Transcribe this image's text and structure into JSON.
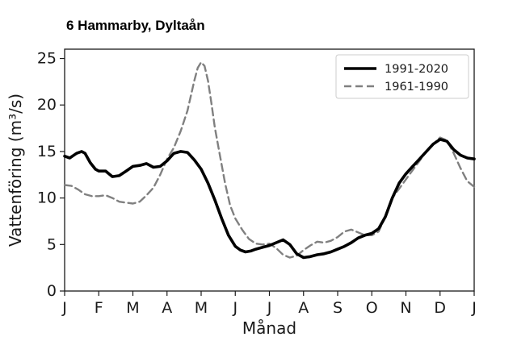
{
  "title": "6 Hammarby, Dyltaån",
  "chart_data": {
    "type": "line",
    "xlabel": "Månad",
    "ylabel": "Vattenföring (m³/s)",
    "x_tick_labels": [
      "J",
      "F",
      "M",
      "A",
      "M",
      "J",
      "J",
      "A",
      "S",
      "O",
      "N",
      "D",
      "J"
    ],
    "y_ticks": [
      0,
      5,
      10,
      15,
      20,
      25
    ],
    "xlim": [
      0,
      12
    ],
    "ylim": [
      0,
      26
    ],
    "grid": false,
    "legend_position": "top-right",
    "series": [
      {
        "name": "1991-2020",
        "style": "solid",
        "color": "#000000",
        "x": [
          0,
          0.15,
          0.35,
          0.5,
          0.6,
          0.75,
          0.9,
          1.0,
          1.2,
          1.4,
          1.6,
          1.8,
          2.0,
          2.2,
          2.4,
          2.6,
          2.8,
          3.0,
          3.2,
          3.4,
          3.6,
          3.8,
          4.0,
          4.2,
          4.4,
          4.6,
          4.8,
          5.0,
          5.15,
          5.3,
          5.45,
          5.6,
          5.8,
          6.0,
          6.2,
          6.4,
          6.6,
          6.8,
          7.0,
          7.2,
          7.4,
          7.6,
          7.8,
          8.0,
          8.2,
          8.4,
          8.6,
          8.8,
          9.0,
          9.2,
          9.4,
          9.6,
          9.8,
          10.0,
          10.2,
          10.4,
          10.6,
          10.8,
          11.0,
          11.2,
          11.4,
          11.6,
          11.8,
          12.0
        ],
        "y": [
          14.5,
          14.3,
          14.8,
          15.0,
          14.8,
          13.8,
          13.1,
          12.9,
          12.9,
          12.3,
          12.4,
          12.9,
          13.4,
          13.5,
          13.7,
          13.3,
          13.4,
          14.0,
          14.8,
          15.0,
          14.9,
          14.1,
          13.1,
          11.6,
          9.8,
          7.8,
          6.0,
          4.8,
          4.4,
          4.2,
          4.3,
          4.5,
          4.7,
          4.9,
          5.2,
          5.5,
          5.0,
          4.0,
          3.6,
          3.7,
          3.9,
          4.0,
          4.2,
          4.5,
          4.8,
          5.2,
          5.7,
          6.0,
          6.2,
          6.7,
          8.0,
          10.0,
          11.6,
          12.6,
          13.4,
          14.2,
          15.0,
          15.8,
          16.3,
          16.1,
          15.2,
          14.6,
          14.3,
          14.2
        ]
      },
      {
        "name": "1961-1990",
        "style": "dashed",
        "color": "#808080",
        "x": [
          0,
          0.2,
          0.4,
          0.6,
          0.8,
          1.0,
          1.2,
          1.4,
          1.6,
          1.8,
          2.0,
          2.2,
          2.4,
          2.6,
          2.8,
          3.0,
          3.2,
          3.4,
          3.6,
          3.7,
          3.8,
          3.9,
          4.0,
          4.1,
          4.2,
          4.3,
          4.4,
          4.55,
          4.7,
          4.85,
          5.0,
          5.2,
          5.4,
          5.6,
          5.8,
          6.0,
          6.2,
          6.4,
          6.6,
          6.8,
          7.0,
          7.2,
          7.4,
          7.6,
          7.8,
          8.0,
          8.2,
          8.4,
          8.6,
          8.8,
          9.0,
          9.2,
          9.4,
          9.6,
          9.8,
          10.0,
          10.2,
          10.4,
          10.6,
          10.8,
          11.0,
          11.2,
          11.4,
          11.6,
          11.8,
          12.0
        ],
        "y": [
          11.4,
          11.3,
          10.9,
          10.4,
          10.2,
          10.2,
          10.3,
          10.0,
          9.6,
          9.5,
          9.4,
          9.6,
          10.3,
          11.1,
          12.5,
          14.2,
          15.4,
          17.2,
          19.4,
          21.0,
          22.6,
          24.0,
          24.6,
          24.2,
          22.6,
          20.2,
          17.6,
          14.6,
          11.6,
          9.2,
          7.8,
          6.6,
          5.6,
          5.1,
          5.0,
          5.1,
          4.6,
          3.9,
          3.6,
          3.8,
          4.4,
          4.9,
          5.3,
          5.2,
          5.4,
          5.8,
          6.4,
          6.6,
          6.3,
          6.0,
          6.0,
          6.4,
          8.0,
          10.0,
          11.0,
          12.0,
          13.0,
          14.0,
          15.0,
          15.8,
          16.5,
          16.2,
          14.8,
          13.2,
          11.8,
          11.2
        ]
      }
    ]
  }
}
